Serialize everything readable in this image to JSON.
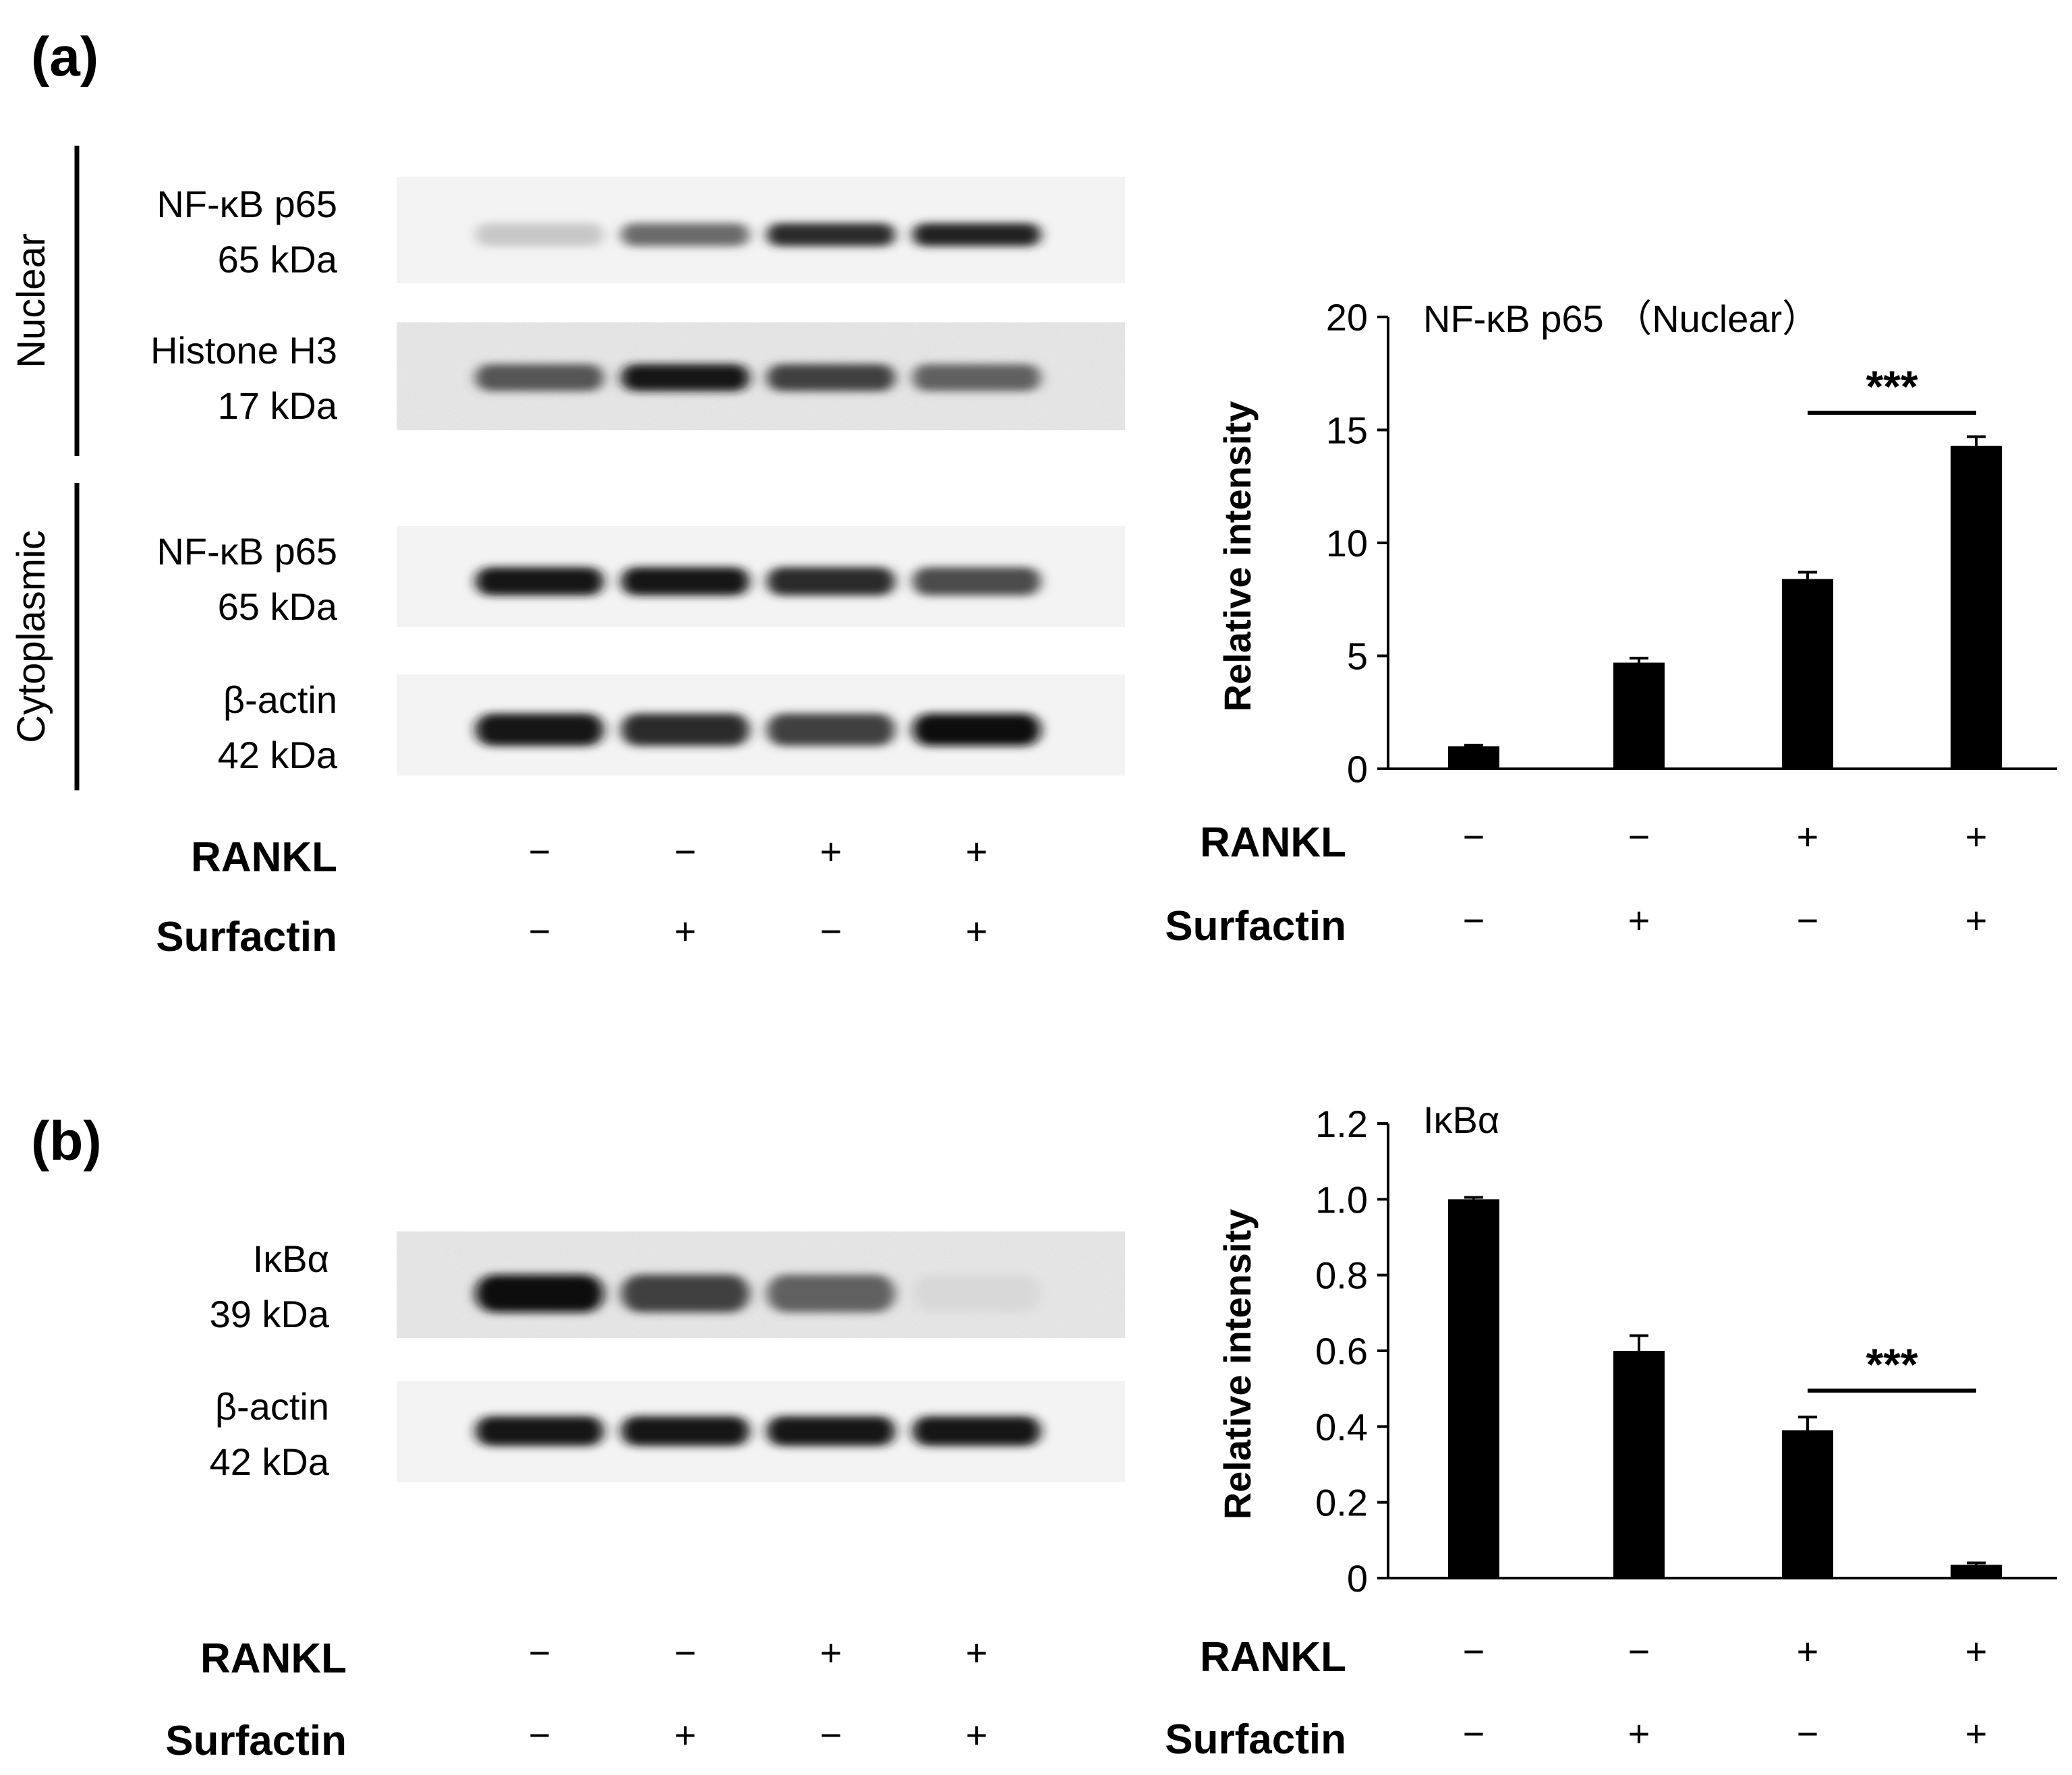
{
  "panels": [
    {
      "letter": "(a)",
      "blot": {
        "groups": [
          {
            "label": "Nuclear",
            "rows": [
              {
                "protein": "NF-κB p65",
                "mw": "65 kDa",
                "intensities": [
                  0.12,
                  0.55,
                  0.85,
                  0.9
                ]
              },
              {
                "protein": "Histone H3",
                "mw": "17 kDa",
                "intensities": [
                  0.65,
                  0.95,
                  0.75,
                  0.6
                ]
              }
            ]
          },
          {
            "label": "Cytoplasmic",
            "rows": [
              {
                "protein": "NF-κB p65",
                "mw": "65 kDa",
                "intensities": [
                  0.95,
                  0.95,
                  0.85,
                  0.7
                ]
              },
              {
                "protein": "β-actin",
                "mw": "42 kDa",
                "intensities": [
                  0.95,
                  0.85,
                  0.75,
                  1.0
                ]
              }
            ]
          }
        ],
        "conditions": [
          {
            "name": "RANKL",
            "values": [
              "−",
              "−",
              "+",
              "+"
            ]
          },
          {
            "name": "Surfactin",
            "values": [
              "−",
              "+",
              "−",
              "+"
            ]
          }
        ]
      },
      "chart_data": {
        "type": "bar",
        "title": "NF-κB p65 （Nuclear）",
        "ylabel": "Relative intensity",
        "ylim": [
          0,
          20
        ],
        "yticks": [
          "0",
          "5",
          "10",
          "15",
          "20"
        ],
        "values": [
          1.0,
          4.7,
          8.4,
          14.3
        ],
        "errors": [
          0.05,
          0.2,
          0.3,
          0.4
        ],
        "significance": {
          "label": "***",
          "between": [
            2,
            3
          ]
        },
        "conditions": [
          {
            "name": "RANKL",
            "values": [
              "−",
              "−",
              "+",
              "+"
            ]
          },
          {
            "name": "Surfactin",
            "values": [
              "−",
              "+",
              "−",
              "+"
            ]
          }
        ]
      }
    },
    {
      "letter": "(b)",
      "blot": {
        "groups": [
          {
            "label": "",
            "rows": [
              {
                "protein": "IκBα",
                "mw": "39 kDa",
                "intensities": [
                  1.0,
                  0.75,
                  0.6,
                  0.04
                ]
              },
              {
                "protein": "β-actin",
                "mw": "42 kDa",
                "intensities": [
                  0.95,
                  0.95,
                  0.95,
                  0.95
                ]
              }
            ]
          }
        ],
        "conditions": [
          {
            "name": "RANKL",
            "values": [
              "−",
              "−",
              "+",
              "+"
            ]
          },
          {
            "name": "Surfactin",
            "values": [
              "−",
              "+",
              "−",
              "+"
            ]
          }
        ]
      },
      "chart_data": {
        "type": "bar",
        "title": "IκBα",
        "ylabel": "Relative intensity",
        "ylim": [
          0,
          1.2
        ],
        "yticks": [
          "0",
          "0.2",
          "0.4",
          "0.6",
          "0.8",
          "1.0",
          "1.2"
        ],
        "values": [
          1.0,
          0.6,
          0.39,
          0.035
        ],
        "errors": [
          0.005,
          0.04,
          0.035,
          0.005
        ],
        "significance": {
          "label": "***",
          "between": [
            2,
            3
          ]
        },
        "conditions": [
          {
            "name": "RANKL",
            "values": [
              "−",
              "−",
              "+",
              "+"
            ]
          },
          {
            "name": "Surfactin",
            "values": [
              "−",
              "+",
              "−",
              "+"
            ]
          }
        ]
      }
    }
  ]
}
